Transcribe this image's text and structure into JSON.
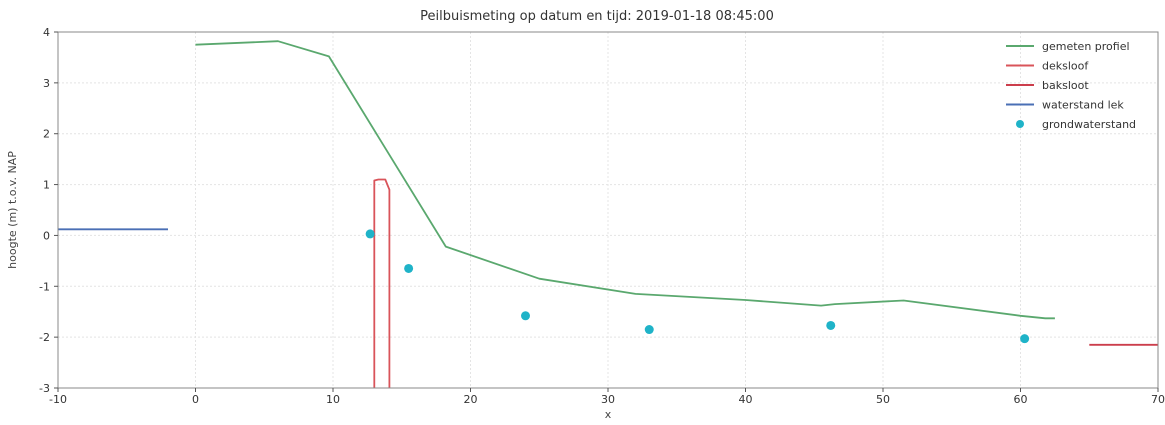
{
  "chart_data": {
    "type": "line",
    "title": "Peilbuismeting op datum en tijd: 2019-01-18 08:45:00",
    "xlabel": "x",
    "ylabel": "hoogte (m) t.o.v. NAP",
    "xlim": [
      -10,
      70
    ],
    "ylim": [
      -3,
      4
    ],
    "xticks": [
      -10,
      0,
      10,
      20,
      30,
      40,
      50,
      60,
      70
    ],
    "yticks": [
      -3,
      -2,
      -1,
      0,
      1,
      2,
      3,
      4
    ],
    "grid": true,
    "legend_position": "top-right",
    "series": [
      {
        "name": "gemeten profiel",
        "kind": "line",
        "color": "#5aa86e",
        "x": [
          0,
          6,
          9.7,
          18.2,
          25,
          32,
          40,
          45.5,
          46.5,
          51.5,
          60,
          61.8,
          62.5
        ],
        "y": [
          3.75,
          3.82,
          3.52,
          -0.22,
          -0.85,
          -1.15,
          -1.27,
          -1.38,
          -1.35,
          -1.28,
          -1.58,
          -1.63,
          -1.63
        ]
      },
      {
        "name": "deksloof",
        "kind": "line",
        "color": "#d9545a",
        "x": [
          13,
          13,
          13.3,
          13.8,
          14.1,
          14.1
        ],
        "y": [
          -3,
          1.08,
          1.1,
          1.1,
          0.9,
          -3
        ]
      },
      {
        "name": "baksloot",
        "kind": "line",
        "color": "#cc3e4c",
        "x": [
          65,
          70
        ],
        "y": [
          -2.15,
          -2.15
        ]
      },
      {
        "name": "waterstand lek",
        "kind": "line",
        "color": "#4a6fb5",
        "x": [
          -10,
          -2
        ],
        "y": [
          0.12,
          0.12
        ]
      },
      {
        "name": "grondwaterstand",
        "kind": "scatter",
        "color": "#1fb3c8",
        "x": [
          12.7,
          15.5,
          24,
          33,
          46.2,
          60.3
        ],
        "y": [
          0.03,
          -0.65,
          -1.58,
          -1.85,
          -1.77,
          -2.03
        ]
      }
    ]
  }
}
